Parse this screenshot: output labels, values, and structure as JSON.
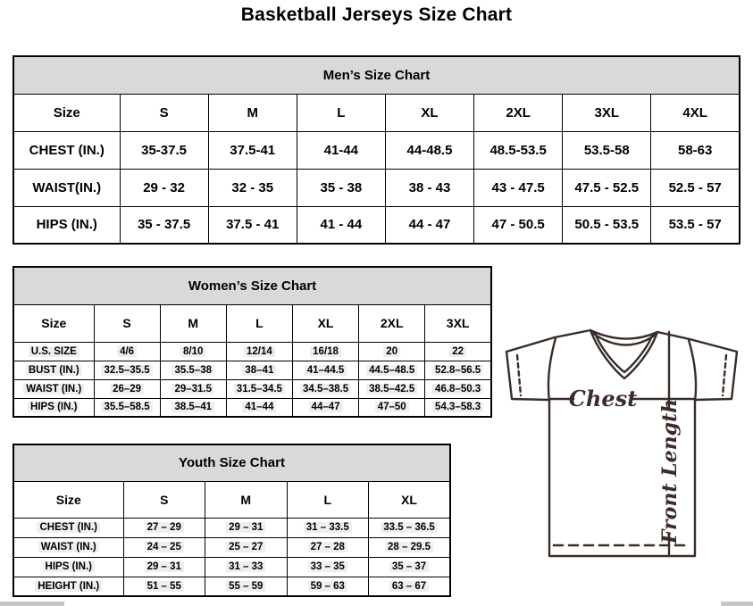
{
  "page_title": "Basketball Jerseys Size Chart",
  "men_chart": {
    "title": "Men’s Size Chart",
    "columns": [
      "Size",
      "S",
      "M",
      "L",
      "XL",
      "2XL",
      "3XL",
      "4XL"
    ],
    "rows": [
      {
        "label": "CHEST (IN.)",
        "values": [
          "35-37.5",
          "37.5-41",
          "41-44",
          "44-48.5",
          "48.5-53.5",
          "53.5-58",
          "58-63"
        ]
      },
      {
        "label": "WAIST(IN.)",
        "values": [
          "29 - 32",
          "32 - 35",
          "35 - 38",
          "38 - 43",
          "43 - 47.5",
          "47.5 - 52.5",
          "52.5 - 57"
        ]
      },
      {
        "label": "HIPS (IN.)",
        "values": [
          "35 - 37.5",
          "37.5 - 41",
          "41 - 44",
          "44 - 47",
          "47 - 50.5",
          "50.5 - 53.5",
          "53.5 - 57"
        ]
      }
    ]
  },
  "women_chart": {
    "title": "Women’s Size Chart",
    "columns": [
      "Size",
      "S",
      "M",
      "L",
      "XL",
      "2XL",
      "3XL"
    ],
    "rows": [
      {
        "label": "U.S. SIZE",
        "values": [
          "4/6",
          "8/10",
          "12/14",
          "16/18",
          "20",
          "22"
        ]
      },
      {
        "label": "BUST (IN.)",
        "values": [
          "32.5–35.5",
          "35.5–38",
          "38–41",
          "41–44.5",
          "44.5–48.5",
          "52.8–56.5"
        ]
      },
      {
        "label": "WAIST (IN.)",
        "values": [
          "26–29",
          "29–31.5",
          "31.5–34.5",
          "34.5–38.5",
          "38.5–42.5",
          "46.8–50.3"
        ]
      },
      {
        "label": "HIPS (IN.)",
        "values": [
          "35.5–58.5",
          "38.5–41",
          "41–44",
          "44–47",
          "47–50",
          "54.3–58.3"
        ]
      }
    ]
  },
  "youth_chart": {
    "title": "Youth Size Chart",
    "columns": [
      "Size",
      "S",
      "M",
      "L",
      "XL"
    ],
    "rows": [
      {
        "label": "CHEST (IN.)",
        "values": [
          "27 – 29",
          "29 – 31",
          "31 – 33.5",
          "33.5 – 36.5"
        ]
      },
      {
        "label": "WAIST (IN.)",
        "values": [
          "24 – 25",
          "25 – 27",
          "27 – 28",
          "28 – 29.5"
        ]
      },
      {
        "label": "HIPS (IN.)",
        "values": [
          "29 – 31",
          "31 – 33",
          "33 – 35",
          "35 – 37"
        ]
      },
      {
        "label": "HEIGHT (IN.)",
        "values": [
          "51 – 55",
          "55 – 59",
          "59 – 63",
          "63 – 67"
        ]
      }
    ]
  },
  "diagram": {
    "chest_label": "Chest",
    "front_length_label": "Front Length"
  },
  "colors": {
    "table_header_bg": "#d9d9d9",
    "table_border": "#000000",
    "jersey_line": "#3a2d28"
  }
}
